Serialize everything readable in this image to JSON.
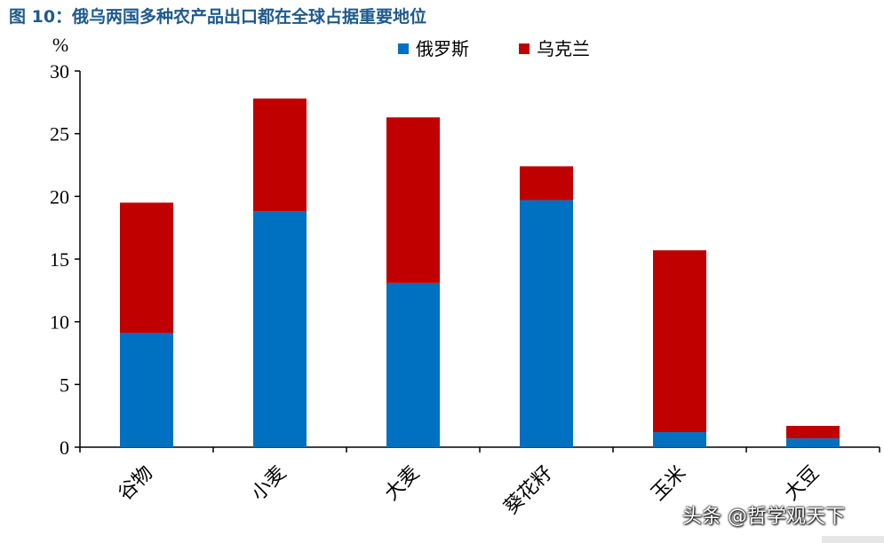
{
  "title": "图 10：俄乌两国多种农产品出口都在全球占据重要地位",
  "watermark": "头条 @哲学观天下",
  "colors": {
    "russia": "#0070c0",
    "ukraine": "#c00000",
    "title": "#1f5a8c"
  },
  "chart_data": {
    "type": "bar",
    "stacked": true,
    "ylabel": "%",
    "ylim": [
      0,
      30
    ],
    "yticks": [
      0,
      5,
      10,
      15,
      20,
      25,
      30
    ],
    "categories": [
      "谷物",
      "小麦",
      "大麦",
      "葵花籽",
      "玉米",
      "大豆"
    ],
    "series": [
      {
        "name": "俄罗斯",
        "color": "#0070c0",
        "values": [
          9.1,
          18.8,
          13.1,
          19.7,
          1.2,
          0.7
        ]
      },
      {
        "name": "乌克兰",
        "color": "#c00000",
        "values": [
          10.4,
          9.0,
          13.2,
          2.7,
          14.5,
          1.0
        ]
      }
    ],
    "legend_position": "top-right",
    "grid": false
  }
}
